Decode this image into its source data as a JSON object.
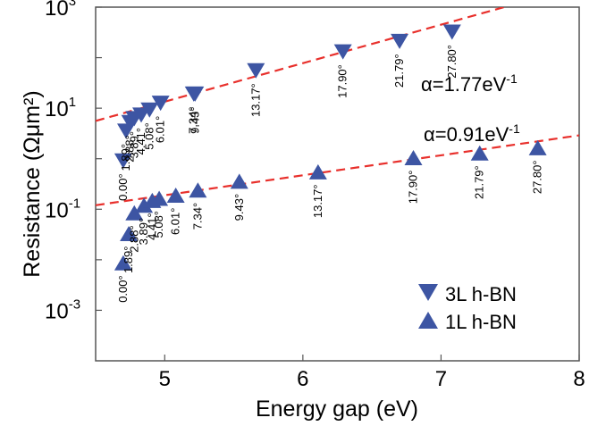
{
  "chart_data": {
    "type": "scatter",
    "title": "",
    "xlabel": "Energy gap (eV)",
    "ylabel": "Resistance (Ωμm²)",
    "xlim": [
      4.5,
      8
    ],
    "ylim_log10": [
      -4,
      3
    ],
    "yscale": "log",
    "grid": false,
    "legend_position": "bottom-right",
    "x_ticks": [
      {
        "value": 5,
        "label": "5"
      },
      {
        "value": 6,
        "label": "6"
      },
      {
        "value": 7,
        "label": "7"
      },
      {
        "value": 8,
        "label": "8"
      }
    ],
    "y_ticks": [
      {
        "exp": 3,
        "base": "10",
        "sup": "3"
      },
      {
        "exp": 1,
        "base": "10",
        "sup": "1"
      },
      {
        "exp": -1,
        "base": "10",
        "sup": "-1"
      },
      {
        "exp": -3,
        "base": "10",
        "sup": "-3"
      }
    ],
    "colors": {
      "marker": "#3d55a3",
      "fit_line": "#e8302c",
      "axes": "#555555"
    },
    "series": [
      {
        "name": "3L h-BN",
        "marker": "triangle-down",
        "points": [
          {
            "x": 4.7,
            "y": 0.9,
            "label": "0.00°"
          },
          {
            "x": 4.72,
            "y": 3.5,
            "label": "1.89°"
          },
          {
            "x": 4.75,
            "y": 5.2,
            "label": "2.88°"
          },
          {
            "x": 4.78,
            "y": 6.2,
            "label": "3.89°"
          },
          {
            "x": 4.83,
            "y": 7.3,
            "label": "4.41°"
          },
          {
            "x": 4.89,
            "y": 9.2,
            "label": "5.08°"
          },
          {
            "x": 4.97,
            "y": 12.5,
            "label": "6.01°"
          },
          {
            "x": 5.21,
            "y": 19,
            "label": "7.34°"
          },
          {
            "x": 5.22,
            "y": 19,
            "label": "9.43°"
          },
          {
            "x": 5.66,
            "y": 55,
            "label": "13.17°"
          },
          {
            "x": 6.29,
            "y": 130,
            "label": "17.90°"
          },
          {
            "x": 6.7,
            "y": 210,
            "label": "21.79°"
          },
          {
            "x": 7.08,
            "y": 320,
            "label": "27.80°"
          }
        ],
        "fit": {
          "x": [
            4.5,
            7.5
          ],
          "y": [
            5.6,
            1080
          ]
        },
        "annotation": {
          "base": "α=1.77eV",
          "sup": "-1"
        }
      },
      {
        "name": "1L h-BN",
        "marker": "triangle-up",
        "points": [
          {
            "x": 4.7,
            "y": 0.0087,
            "label": "0.00°"
          },
          {
            "x": 4.74,
            "y": 0.033,
            "label": "1.89°"
          },
          {
            "x": 4.78,
            "y": 0.085,
            "label": "2.88°"
          },
          {
            "x": 4.85,
            "y": 0.12,
            "label": "3.89°"
          },
          {
            "x": 4.91,
            "y": 0.15,
            "label": "4.41°"
          },
          {
            "x": 4.96,
            "y": 0.165,
            "label": "5.08°"
          },
          {
            "x": 5.08,
            "y": 0.19,
            "label": "6.01°"
          },
          {
            "x": 5.24,
            "y": 0.24,
            "label": "7.34°"
          },
          {
            "x": 5.54,
            "y": 0.36,
            "label": "9.43°"
          },
          {
            "x": 6.11,
            "y": 0.55,
            "label": "13.17°"
          },
          {
            "x": 6.8,
            "y": 1.05,
            "label": "17.90°"
          },
          {
            "x": 7.28,
            "y": 1.3,
            "label": "21.79°"
          },
          {
            "x": 7.7,
            "y": 1.65,
            "label": "27.80°"
          }
        ],
        "fit": {
          "x": [
            4.5,
            8
          ],
          "y": [
            0.12,
            2.9
          ]
        },
        "annotation": {
          "base": "α=0.91eV",
          "sup": "-1"
        }
      }
    ]
  }
}
